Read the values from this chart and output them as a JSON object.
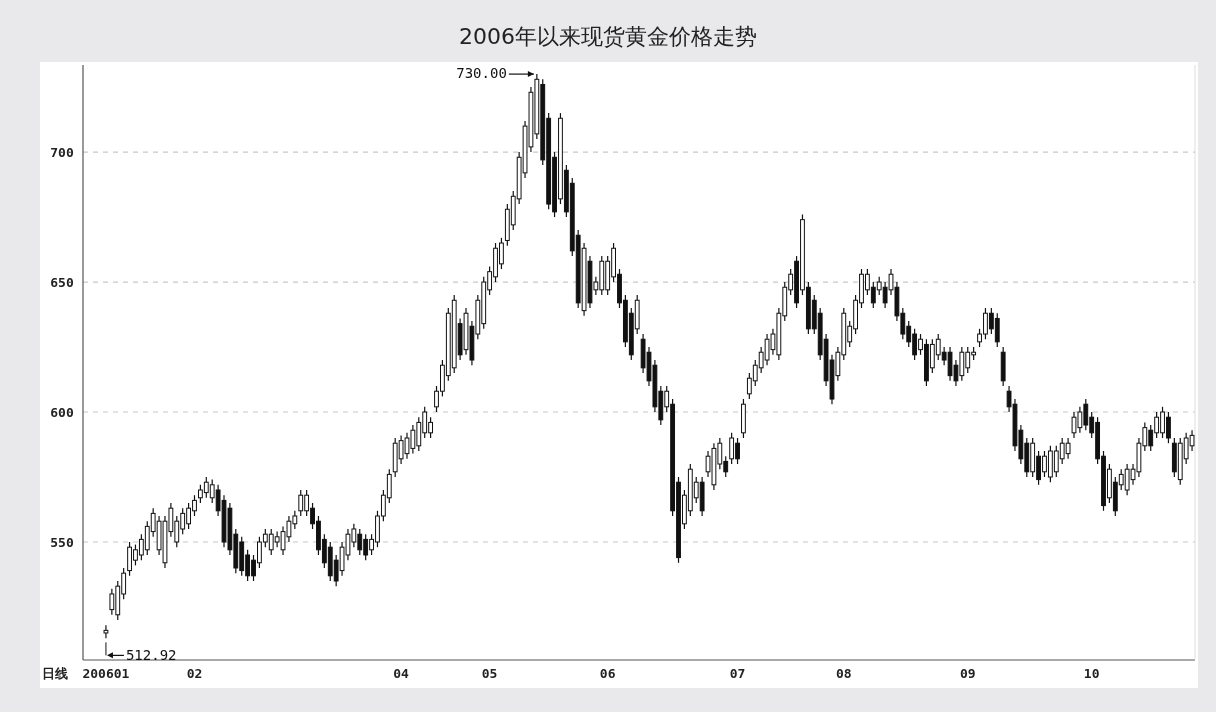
{
  "chart_data": {
    "type": "candlestick",
    "title": "2006年以来现货黄金价格走势",
    "annotations": [
      "730.00",
      "512.92",
      "日线"
    ],
    "color": "#111111",
    "ylim": [
      504.6,
      733.5
    ],
    "yticks": [
      550,
      600,
      650,
      700
    ],
    "grid": "y",
    "categories": [
      "200601",
      null,
      null,
      null,
      null,
      null,
      null,
      null,
      null,
      null,
      null,
      null,
      null,
      null,
      null,
      "02",
      null,
      null,
      null,
      null,
      null,
      null,
      null,
      null,
      null,
      null,
      null,
      null,
      null,
      null,
      null,
      null,
      null,
      null,
      null,
      null,
      null,
      null,
      null,
      null,
      null,
      null,
      null,
      null,
      null,
      null,
      null,
      null,
      null,
      null,
      "04",
      null,
      null,
      null,
      null,
      null,
      null,
      null,
      null,
      null,
      null,
      null,
      null,
      null,
      null,
      "05",
      null,
      null,
      null,
      null,
      null,
      null,
      null,
      null,
      null,
      null,
      null,
      null,
      null,
      null,
      null,
      null,
      null,
      null,
      null,
      "06",
      null,
      null,
      null,
      null,
      null,
      null,
      null,
      null,
      null,
      null,
      null,
      null,
      null,
      null,
      null,
      null,
      null,
      null,
      null,
      null,
      null,
      "07",
      null,
      null,
      null,
      null,
      null,
      null,
      null,
      null,
      null,
      null,
      null,
      null,
      null,
      null,
      null,
      null,
      null,
      "08",
      null,
      null,
      null,
      null,
      null,
      null,
      null,
      null,
      null,
      null,
      null,
      null,
      null,
      null,
      null,
      null,
      null,
      null,
      null,
      null,
      "09",
      null,
      null,
      null,
      null,
      null,
      null,
      null,
      null,
      null,
      null,
      null,
      null,
      null,
      null,
      null,
      null,
      null,
      null,
      null,
      null,
      "10",
      null,
      null,
      null,
      null,
      null,
      null,
      null,
      null,
      null,
      null,
      null,
      null,
      null,
      null,
      null,
      null,
      null
    ],
    "ohlc": [
      [
        515,
        518,
        512.92,
        516
      ],
      [
        524,
        532,
        522,
        530
      ],
      [
        522,
        535,
        520,
        533
      ],
      [
        530,
        540,
        528,
        538
      ],
      [
        539,
        550,
        537,
        548
      ],
      [
        543,
        549,
        541,
        547
      ],
      [
        545,
        553,
        543,
        551
      ],
      [
        547,
        558,
        545,
        556
      ],
      [
        554,
        563,
        552,
        561
      ],
      [
        547,
        560,
        545,
        558
      ],
      [
        542,
        560,
        540,
        558
      ],
      [
        554,
        565,
        552,
        563
      ],
      [
        550,
        560,
        548,
        558
      ],
      [
        555,
        563,
        553,
        561
      ],
      [
        557,
        565,
        555,
        563
      ],
      [
        562,
        568,
        560,
        566
      ],
      [
        567,
        572,
        565,
        570
      ],
      [
        569,
        575,
        567,
        573
      ],
      [
        567,
        574,
        565,
        572
      ],
      [
        570,
        572,
        560,
        562
      ],
      [
        566,
        568,
        548,
        550
      ],
      [
        563,
        565,
        545,
        547
      ],
      [
        553,
        555,
        538,
        540
      ],
      [
        550,
        552,
        537,
        539
      ],
      [
        545,
        547,
        535,
        537
      ],
      [
        543,
        545,
        535,
        537
      ],
      [
        542,
        552,
        540,
        550
      ],
      [
        550,
        555,
        548,
        553
      ],
      [
        547,
        555,
        545,
        553
      ],
      [
        550,
        554,
        548,
        552
      ],
      [
        547,
        556,
        545,
        554
      ],
      [
        552,
        560,
        550,
        558
      ],
      [
        557,
        562,
        555,
        560
      ],
      [
        562,
        570,
        560,
        568
      ],
      [
        562,
        570,
        560,
        568
      ],
      [
        563,
        565,
        555,
        557
      ],
      [
        558,
        560,
        545,
        547
      ],
      [
        551,
        553,
        540,
        542
      ],
      [
        548,
        550,
        535,
        537
      ],
      [
        543,
        545,
        533,
        535
      ],
      [
        539,
        550,
        537,
        548
      ],
      [
        545,
        555,
        543,
        553
      ],
      [
        550,
        557,
        548,
        555
      ],
      [
        553,
        555,
        545,
        547
      ],
      [
        551,
        553,
        543,
        545
      ],
      [
        547,
        553,
        545,
        551
      ],
      [
        550,
        562,
        548,
        560
      ],
      [
        560,
        570,
        558,
        568
      ],
      [
        567,
        578,
        565,
        576
      ],
      [
        577,
        590,
        575,
        588
      ],
      [
        582,
        591,
        580,
        589
      ],
      [
        584,
        592,
        582,
        590
      ],
      [
        586,
        595,
        584,
        593
      ],
      [
        587,
        598,
        585,
        596
      ],
      [
        592,
        602,
        590,
        600
      ],
      [
        592,
        598,
        590,
        596
      ],
      [
        602,
        610,
        600,
        608
      ],
      [
        608,
        620,
        606,
        618
      ],
      [
        614,
        640,
        612,
        638
      ],
      [
        617,
        645,
        615,
        643
      ],
      [
        634,
        636,
        620,
        622
      ],
      [
        624,
        640,
        622,
        638
      ],
      [
        633,
        635,
        618,
        620
      ],
      [
        630,
        645,
        628,
        643
      ],
      [
        634,
        652,
        632,
        650
      ],
      [
        647,
        656,
        645,
        654
      ],
      [
        652,
        665,
        650,
        663
      ],
      [
        657,
        667,
        655,
        665
      ],
      [
        666,
        680,
        664,
        678
      ],
      [
        672,
        685,
        670,
        683
      ],
      [
        682,
        700,
        680,
        698
      ],
      [
        692,
        712,
        690,
        710
      ],
      [
        702,
        725,
        700,
        723
      ],
      [
        707,
        730,
        705,
        728
      ],
      [
        726,
        728,
        695,
        697
      ],
      [
        713,
        715,
        678,
        680
      ],
      [
        698,
        700,
        675,
        677
      ],
      [
        682,
        715,
        680,
        713
      ],
      [
        693,
        695,
        675,
        677
      ],
      [
        688,
        690,
        660,
        662
      ],
      [
        668,
        670,
        640,
        642
      ],
      [
        639,
        665,
        637,
        663
      ],
      [
        658,
        660,
        640,
        642
      ],
      [
        647,
        652,
        645,
        650
      ],
      [
        647,
        660,
        645,
        658
      ],
      [
        647,
        660,
        645,
        658
      ],
      [
        652,
        665,
        650,
        663
      ],
      [
        653,
        655,
        640,
        642
      ],
      [
        643,
        645,
        625,
        627
      ],
      [
        638,
        640,
        620,
        622
      ],
      [
        632,
        645,
        630,
        643
      ],
      [
        628,
        630,
        615,
        617
      ],
      [
        623,
        625,
        610,
        612
      ],
      [
        618,
        620,
        600,
        602
      ],
      [
        608,
        610,
        595,
        597
      ],
      [
        602,
        610,
        600,
        608
      ],
      [
        603,
        605,
        560,
        562
      ],
      [
        573,
        575,
        542,
        544
      ],
      [
        557,
        570,
        555,
        568
      ],
      [
        562,
        580,
        560,
        578
      ],
      [
        567,
        575,
        565,
        573
      ],
      [
        573,
        575,
        560,
        562
      ],
      [
        577,
        585,
        575,
        583
      ],
      [
        572,
        588,
        570,
        586
      ],
      [
        580,
        590,
        578,
        588
      ],
      [
        581,
        583,
        575,
        577
      ],
      [
        582,
        592,
        580,
        590
      ],
      [
        588,
        590,
        580,
        582
      ],
      [
        592,
        605,
        590,
        603
      ],
      [
        607,
        615,
        605,
        613
      ],
      [
        612,
        620,
        610,
        618
      ],
      [
        617,
        625,
        615,
        623
      ],
      [
        620,
        630,
        618,
        628
      ],
      [
        624,
        632,
        622,
        630
      ],
      [
        622,
        640,
        620,
        638
      ],
      [
        637,
        650,
        635,
        648
      ],
      [
        647,
        655,
        645,
        653
      ],
      [
        658,
        660,
        640,
        642
      ],
      [
        647,
        676,
        645,
        674
      ],
      [
        648,
        650,
        630,
        632
      ],
      [
        643,
        645,
        630,
        632
      ],
      [
        638,
        640,
        620,
        622
      ],
      [
        628,
        630,
        610,
        612
      ],
      [
        620,
        622,
        603,
        605
      ],
      [
        614,
        625,
        612,
        623
      ],
      [
        622,
        640,
        620,
        638
      ],
      [
        627,
        635,
        625,
        633
      ],
      [
        632,
        645,
        630,
        643
      ],
      [
        642,
        655,
        640,
        653
      ],
      [
        647,
        655,
        645,
        653
      ],
      [
        648,
        650,
        640,
        642
      ],
      [
        647,
        652,
        645,
        650
      ],
      [
        648,
        650,
        640,
        642
      ],
      [
        647,
        655,
        645,
        653
      ],
      [
        648,
        650,
        635,
        637
      ],
      [
        638,
        640,
        628,
        630
      ],
      [
        633,
        635,
        625,
        627
      ],
      [
        630,
        632,
        620,
        622
      ],
      [
        624,
        630,
        622,
        628
      ],
      [
        626,
        628,
        610,
        612
      ],
      [
        617,
        628,
        615,
        626
      ],
      [
        622,
        630,
        620,
        628
      ],
      [
        623,
        625,
        618,
        620
      ],
      [
        623,
        625,
        612,
        614
      ],
      [
        618,
        620,
        610,
        612
      ],
      [
        614,
        625,
        612,
        623
      ],
      [
        617,
        625,
        615,
        623
      ],
      [
        622,
        625,
        620,
        623
      ],
      [
        627,
        632,
        625,
        630
      ],
      [
        630,
        640,
        628,
        638
      ],
      [
        638,
        640,
        630,
        632
      ],
      [
        636,
        638,
        625,
        627
      ],
      [
        623,
        625,
        610,
        612
      ],
      [
        608,
        610,
        600,
        602
      ],
      [
        603,
        605,
        585,
        587
      ],
      [
        593,
        595,
        580,
        582
      ],
      [
        588,
        590,
        575,
        577
      ],
      [
        577,
        590,
        575,
        588
      ],
      [
        583,
        585,
        572,
        574
      ],
      [
        577,
        585,
        575,
        583
      ],
      [
        575,
        587,
        573,
        585
      ],
      [
        577,
        587,
        575,
        585
      ],
      [
        582,
        590,
        580,
        588
      ],
      [
        584,
        590,
        582,
        588
      ],
      [
        592,
        600,
        590,
        598
      ],
      [
        594,
        602,
        592,
        600
      ],
      [
        603,
        605,
        593,
        595
      ],
      [
        598,
        600,
        590,
        592
      ],
      [
        596,
        598,
        580,
        582
      ],
      [
        583,
        585,
        562,
        564
      ],
      [
        567,
        580,
        565,
        578
      ],
      [
        573,
        575,
        560,
        562
      ],
      [
        572,
        578,
        570,
        576
      ],
      [
        570,
        580,
        568,
        578
      ],
      [
        574,
        580,
        572,
        578
      ],
      [
        577,
        590,
        575,
        588
      ],
      [
        587,
        596,
        585,
        594
      ],
      [
        593,
        595,
        585,
        587
      ],
      [
        592,
        600,
        590,
        598
      ],
      [
        592,
        602,
        590,
        600
      ],
      [
        598,
        600,
        588,
        590
      ],
      [
        588,
        590,
        575,
        577
      ],
      [
        574,
        590,
        572,
        588
      ],
      [
        582,
        592,
        580,
        590
      ],
      [
        587,
        593,
        585,
        591
      ]
    ]
  }
}
